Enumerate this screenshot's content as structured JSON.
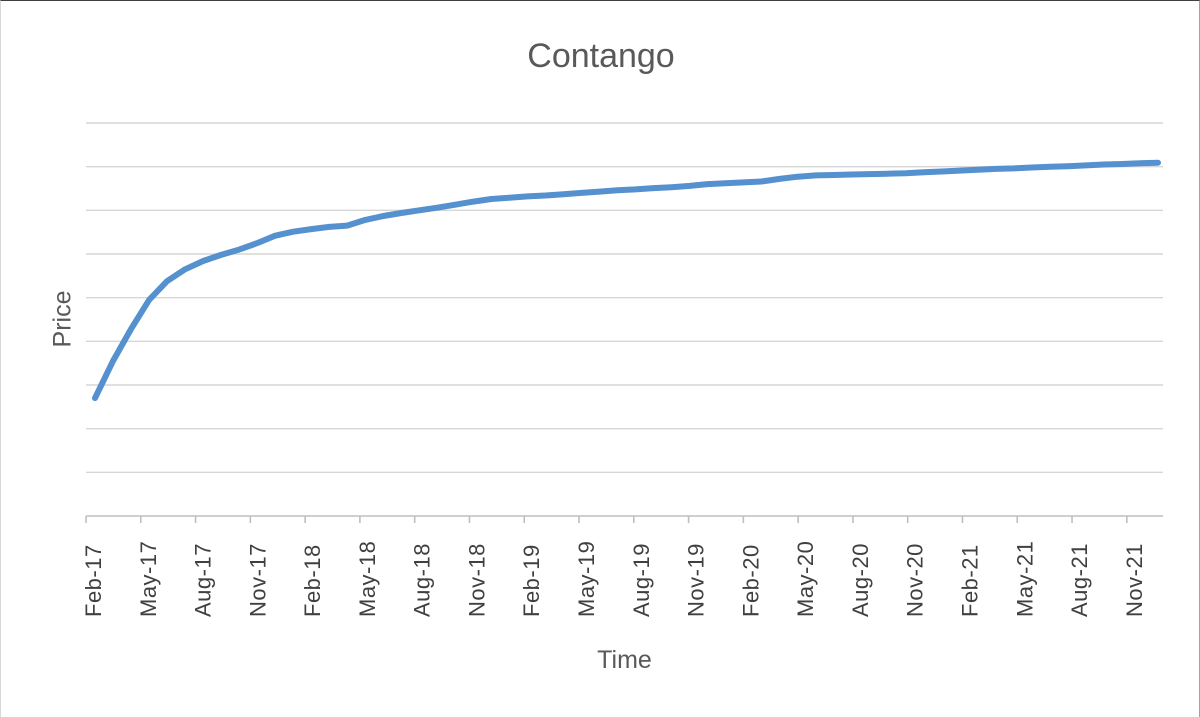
{
  "chart_data": {
    "type": "line",
    "title": "Contango",
    "xlabel": "Time",
    "ylabel": "Price",
    "x_tick_labels": [
      "Feb-17",
      "May-17",
      "Aug-17",
      "Nov-17",
      "Feb-18",
      "May-18",
      "Aug-18",
      "Nov-18",
      "Feb-19",
      "May-19",
      "Aug-19",
      "Nov-19",
      "Feb-20",
      "May-20",
      "Aug-20",
      "Nov-20",
      "Feb-21",
      "May-21",
      "Aug-21",
      "Nov-21"
    ],
    "x_tick_interval_months": 3,
    "x_frequency": "monthly",
    "x_range": "Feb-17 to Jan-22",
    "ylim": [
      0,
      9
    ],
    "y_gridline_interval": 1,
    "y_tick_labels_visible": false,
    "grid": "horizontal",
    "legend": "none",
    "series": [
      {
        "name": "Price",
        "values": [
          2.7,
          3.55,
          4.28,
          4.95,
          5.38,
          5.65,
          5.84,
          5.98,
          6.1,
          6.25,
          6.42,
          6.51,
          6.57,
          6.62,
          6.65,
          6.78,
          6.87,
          6.94,
          7.0,
          7.06,
          7.13,
          7.2,
          7.26,
          7.29,
          7.32,
          7.34,
          7.37,
          7.4,
          7.43,
          7.46,
          7.48,
          7.51,
          7.53,
          7.56,
          7.6,
          7.62,
          7.64,
          7.66,
          7.72,
          7.77,
          7.8,
          7.81,
          7.82,
          7.83,
          7.84,
          7.85,
          7.87,
          7.89,
          7.91,
          7.93,
          7.95,
          7.96,
          7.98,
          8.0,
          8.01,
          8.03,
          8.05,
          8.06,
          8.08,
          8.09
        ]
      }
    ],
    "colors": {
      "line": "#5491CE",
      "gridline": "#D6D6D6",
      "axis_line": "#BFBFBF",
      "title_text": "#595959",
      "axis_title_text": "#595959",
      "tick_label_text": "#404040",
      "background": "#FFFFFF"
    }
  }
}
